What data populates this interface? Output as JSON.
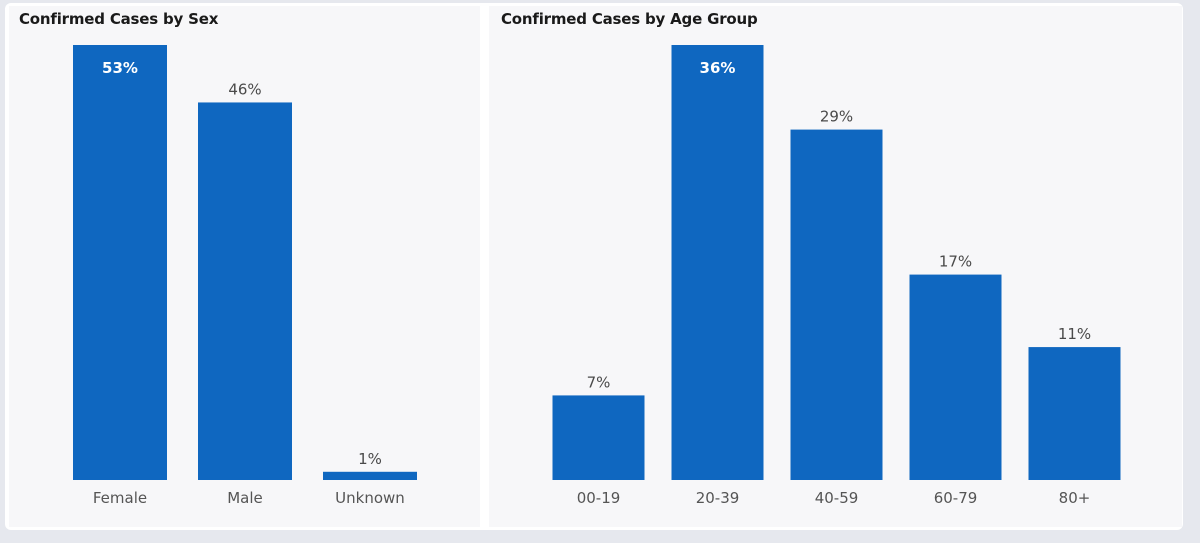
{
  "colors": {
    "bar": "#0f67c0",
    "inside_label": "#ffffff",
    "label": "#4a4a4a"
  },
  "chart_data": [
    {
      "type": "bar",
      "title": "Confirmed Cases by Sex",
      "categories": [
        "Female",
        "Male",
        "Unknown"
      ],
      "values": [
        53,
        46,
        1
      ],
      "data_labels": [
        "53%",
        "46%",
        "1%"
      ],
      "inside_label_index": 0,
      "ylim": [
        0,
        53
      ],
      "xlabel": "",
      "ylabel": "",
      "grid": false
    },
    {
      "type": "bar",
      "title": "Confirmed Cases by Age Group",
      "categories": [
        "00-19",
        "20-39",
        "40-59",
        "60-79",
        "80+"
      ],
      "values": [
        7,
        36,
        29,
        17,
        11
      ],
      "data_labels": [
        "7%",
        "36%",
        "29%",
        "17%",
        "11%"
      ],
      "inside_label_index": 1,
      "ylim": [
        0,
        36
      ],
      "xlabel": "",
      "ylabel": "",
      "grid": false
    }
  ]
}
